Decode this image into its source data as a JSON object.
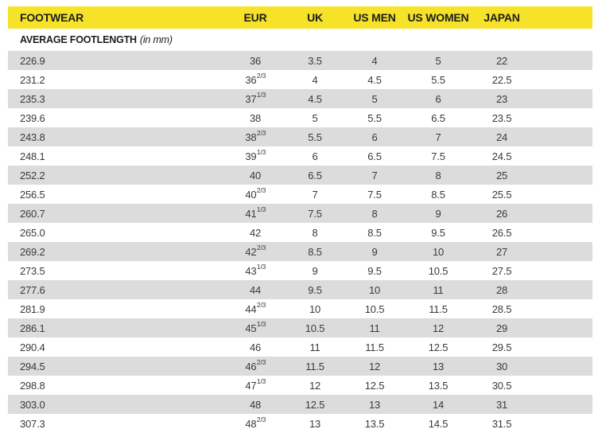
{
  "theme": {
    "header_background": "#F5E229",
    "row_shade": "#DCDCDC",
    "header_text_color": "#1D1D1B",
    "body_text_color": "#3A3A3A"
  },
  "table": {
    "columns": [
      "FOOTWEAR",
      "EUR",
      "UK",
      "US MEN",
      "US WOMEN",
      "JAPAN"
    ],
    "subheader": {
      "label": "AVERAGE FOOTLENGTH",
      "unit": "(in mm)"
    },
    "rows": [
      {
        "footlength": "226.9",
        "eur": "36",
        "eur_sup": "",
        "uk": "3.5",
        "us_men": "4",
        "us_women": "5",
        "japan": "22"
      },
      {
        "footlength": "231.2",
        "eur": "36",
        "eur_sup": "2/3",
        "uk": "4",
        "us_men": "4.5",
        "us_women": "5.5",
        "japan": "22.5"
      },
      {
        "footlength": "235.3",
        "eur": "37",
        "eur_sup": "1/3",
        "uk": "4.5",
        "us_men": "5",
        "us_women": "6",
        "japan": "23"
      },
      {
        "footlength": "239.6",
        "eur": "38",
        "eur_sup": "",
        "uk": "5",
        "us_men": "5.5",
        "us_women": "6.5",
        "japan": "23.5"
      },
      {
        "footlength": "243.8",
        "eur": "38",
        "eur_sup": "2/3",
        "uk": "5.5",
        "us_men": "6",
        "us_women": "7",
        "japan": "24"
      },
      {
        "footlength": "248.1",
        "eur": "39",
        "eur_sup": "1/3",
        "uk": "6",
        "us_men": "6.5",
        "us_women": "7.5",
        "japan": "24.5"
      },
      {
        "footlength": "252.2",
        "eur": "40",
        "eur_sup": "",
        "uk": "6.5",
        "us_men": "7",
        "us_women": "8",
        "japan": "25"
      },
      {
        "footlength": "256.5",
        "eur": "40",
        "eur_sup": "2/3",
        "uk": "7",
        "us_men": "7.5",
        "us_women": "8.5",
        "japan": "25.5"
      },
      {
        "footlength": "260.7",
        "eur": "41",
        "eur_sup": "1/3",
        "uk": "7.5",
        "us_men": "8",
        "us_women": "9",
        "japan": "26"
      },
      {
        "footlength": "265.0",
        "eur": "42",
        "eur_sup": "",
        "uk": "8",
        "us_men": "8.5",
        "us_women": "9.5",
        "japan": "26.5"
      },
      {
        "footlength": "269.2",
        "eur": "42",
        "eur_sup": "2/3",
        "uk": "8.5",
        "us_men": "9",
        "us_women": "10",
        "japan": "27"
      },
      {
        "footlength": "273.5",
        "eur": "43",
        "eur_sup": "1/3",
        "uk": "9",
        "us_men": "9.5",
        "us_women": "10.5",
        "japan": "27.5"
      },
      {
        "footlength": "277.6",
        "eur": "44",
        "eur_sup": "",
        "uk": "9.5",
        "us_men": "10",
        "us_women": "11",
        "japan": "28"
      },
      {
        "footlength": "281.9",
        "eur": "44",
        "eur_sup": "2/3",
        "uk": "10",
        "us_men": "10.5",
        "us_women": "11.5",
        "japan": "28.5"
      },
      {
        "footlength": "286.1",
        "eur": "45",
        "eur_sup": "1/3",
        "uk": "10.5",
        "us_men": "11",
        "us_women": "12",
        "japan": "29"
      },
      {
        "footlength": "290.4",
        "eur": "46",
        "eur_sup": "",
        "uk": "11",
        "us_men": "11.5",
        "us_women": "12.5",
        "japan": "29.5"
      },
      {
        "footlength": "294.5",
        "eur": "46",
        "eur_sup": "2/3",
        "uk": "11.5",
        "us_men": "12",
        "us_women": "13",
        "japan": "30"
      },
      {
        "footlength": "298.8",
        "eur": "47",
        "eur_sup": "1/3",
        "uk": "12",
        "us_men": "12.5",
        "us_women": "13.5",
        "japan": "30.5"
      },
      {
        "footlength": "303.0",
        "eur": "48",
        "eur_sup": "",
        "uk": "12.5",
        "us_men": "13",
        "us_women": "14",
        "japan": "31"
      },
      {
        "footlength": "307.3",
        "eur": "48",
        "eur_sup": "2/3",
        "uk": "13",
        "us_men": "13.5",
        "us_women": "14.5",
        "japan": "31.5"
      }
    ]
  }
}
